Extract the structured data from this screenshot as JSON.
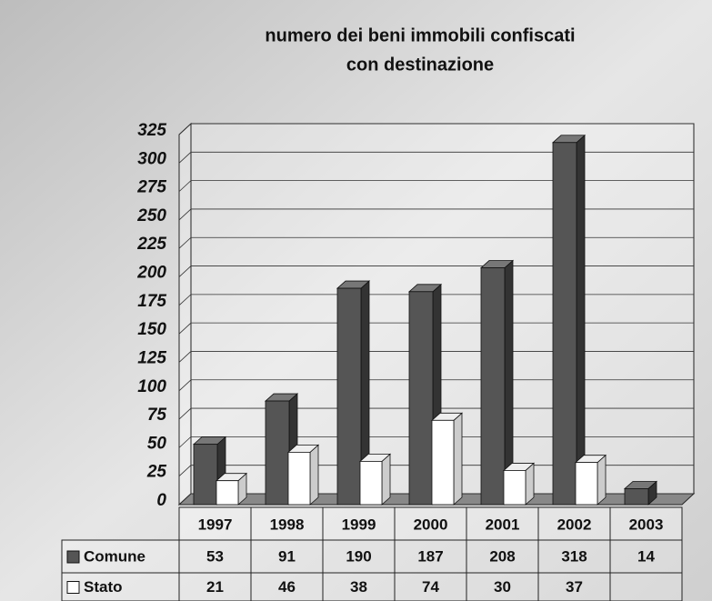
{
  "chart_data": {
    "type": "bar3d",
    "title": [
      "numero dei beni immobili confiscati",
      "con destinazione"
    ],
    "categories": [
      "1997",
      "1998",
      "1999",
      "2000",
      "2001",
      "2002",
      "2003"
    ],
    "series": [
      {
        "name": "Comune",
        "color": "#555555",
        "values": [
          53,
          91,
          190,
          187,
          208,
          318,
          14
        ]
      },
      {
        "name": "Stato",
        "color": "#ffffff",
        "values": [
          21,
          46,
          38,
          74,
          30,
          37,
          null
        ]
      }
    ],
    "ylim": [
      0,
      325
    ],
    "yticks": [
      0,
      25,
      50,
      75,
      100,
      125,
      150,
      175,
      200,
      225,
      250,
      275,
      300,
      325
    ],
    "grid": true
  }
}
